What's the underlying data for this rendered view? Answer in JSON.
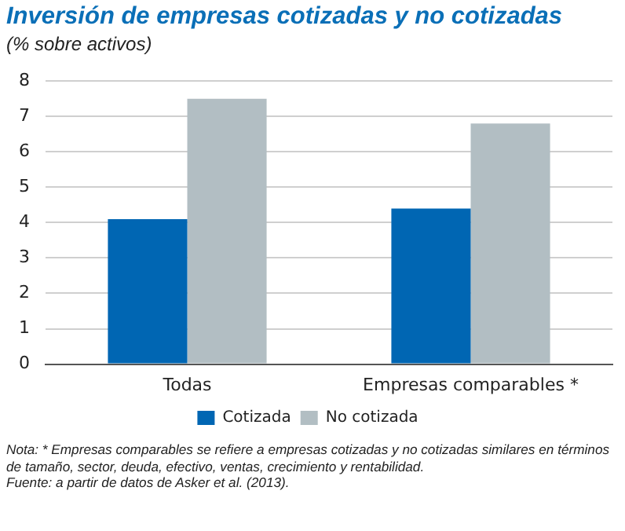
{
  "chart_data": {
    "type": "bar",
    "title": "Inversión de empresas cotizadas y no cotizadas",
    "subtitle": "(% sobre activos)",
    "categories": [
      "Todas",
      "Empresas comparables *"
    ],
    "series": [
      {
        "name": "Cotizada",
        "color": "#0066b3",
        "values": [
          4.1,
          4.4
        ]
      },
      {
        "name": "No cotizada",
        "color": "#b2bec3",
        "values": [
          7.5,
          6.8
        ]
      }
    ],
    "ylim": [
      0,
      8
    ],
    "yticks": [
      0,
      1,
      2,
      3,
      4,
      5,
      6,
      7,
      8
    ],
    "grid": "y",
    "legend": "bottom",
    "annotations": [
      "Nota: * Empresas comparables se refiere a empresas cotizadas y no cotizadas similares en términos de tamaño, sector, deuda, efectivo, ventas, crecimiento y rentabilidad.",
      "Fuente: a partir de datos de Asker et al. (2013)."
    ]
  }
}
